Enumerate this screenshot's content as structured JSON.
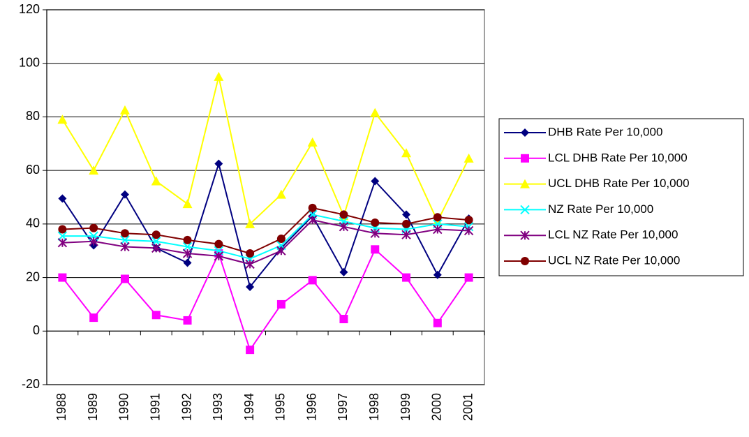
{
  "chart_data": {
    "type": "line",
    "categories": [
      "1988",
      "1989",
      "1990",
      "1991",
      "1992",
      "1993",
      "1994",
      "1995",
      "1996",
      "1997",
      "1998",
      "1999",
      "2000",
      "2001"
    ],
    "series": [
      {
        "name": "DHB Rate Per 10,000",
        "color": "#000080",
        "marker": "diamond",
        "values": [
          49.5,
          32,
          51,
          31,
          25.5,
          62.5,
          16.5,
          31,
          43,
          22,
          56,
          43.5,
          21,
          42
        ]
      },
      {
        "name": "LCL DHB Rate Per 10,000",
        "color": "#ff00ff",
        "marker": "square",
        "values": [
          20,
          5,
          19.5,
          6,
          4,
          29,
          -7,
          10,
          19,
          4.5,
          30.5,
          20,
          3,
          20
        ]
      },
      {
        "name": "UCL DHB Rate Per 10,000",
        "color": "#ffff00",
        "marker": "triangle",
        "values": [
          79,
          60,
          82.5,
          56,
          47.5,
          95,
          40,
          51,
          70.5,
          43,
          81.5,
          66.5,
          41,
          64.5
        ]
      },
      {
        "name": "NZ Rate Per 10,000",
        "color": "#00ffff",
        "marker": "x",
        "values": [
          35.5,
          35.5,
          34,
          33.5,
          31.5,
          30,
          27,
          32,
          43.5,
          41,
          38.5,
          38,
          40,
          39
        ]
      },
      {
        "name": "LCL NZ Rate Per 10,000",
        "color": "#800080",
        "marker": "star",
        "values": [
          33,
          33.5,
          31.5,
          31,
          29,
          28,
          25,
          30,
          41.5,
          39,
          36.5,
          36,
          38,
          37.5
        ]
      },
      {
        "name": "UCL NZ Rate Per 10,000",
        "color": "#800000",
        "marker": "circle",
        "values": [
          38,
          38.5,
          36.5,
          36,
          34,
          32.5,
          29,
          34.5,
          46,
          43.5,
          40.5,
          40,
          42.5,
          41.5
        ]
      }
    ],
    "ylim": [
      -20,
      120
    ],
    "yticks": [
      -20,
      0,
      20,
      40,
      60,
      80,
      100,
      120
    ],
    "grid": true,
    "legend": "right"
  }
}
